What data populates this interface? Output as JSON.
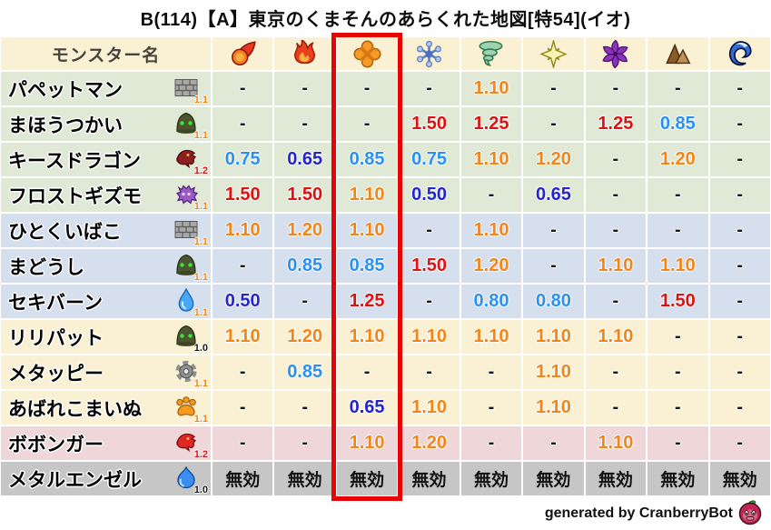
{
  "title": "B(114)【A】東京のくまそんのあらくれた地図[特54](イオ)",
  "footer": {
    "credit": "generated by CranberryBot",
    "icon": "cranberry-bot-icon"
  },
  "colors": {
    "strong_weakness": "#dd1111",
    "weakness": "#f08519",
    "resist": "#2b8ff0",
    "strong_resist": "#2424cc",
    "neutral": "#191919",
    "highlight_frame": "#e60505"
  },
  "chart_data": {
    "type": "table",
    "title": "B(114)【A】東京のくまそんのあらくれた地図[特54](イオ)",
    "name_column_header": "モンスター名",
    "immune_label": "無効",
    "element_columns": [
      {
        "icon": "fireball-icon",
        "highlighted": false
      },
      {
        "icon": "flame-icon",
        "highlighted": false
      },
      {
        "icon": "explosion-icon",
        "highlighted": true
      },
      {
        "icon": "snowflake-icon",
        "highlighted": false
      },
      {
        "icon": "tornado-icon",
        "highlighted": false
      },
      {
        "icon": "spark-icon",
        "highlighted": false
      },
      {
        "icon": "pinwheel-icon",
        "highlighted": false
      },
      {
        "icon": "mountain-icon",
        "highlighted": false
      },
      {
        "icon": "wave-icon",
        "highlighted": false
      }
    ],
    "rows": [
      {
        "name": "パペットマン",
        "icon": "brick-wall-icon",
        "rate": "1.1",
        "group": "green",
        "values": [
          "-",
          "-",
          "-",
          "-",
          "1.10",
          "-",
          "-",
          "-",
          "-"
        ]
      },
      {
        "name": "まほうつかい",
        "icon": "hood-icon",
        "rate": "1.1",
        "group": "green",
        "values": [
          "-",
          "-",
          "-",
          "1.50",
          "1.25",
          "-",
          "1.25",
          "0.85",
          "-"
        ]
      },
      {
        "name": "キースドラゴン",
        "icon": "dragon-dark-icon",
        "rate": "1.2",
        "group": "green",
        "values": [
          "0.75",
          "0.65",
          "0.85",
          "0.75",
          "1.10",
          "1.20",
          "-",
          "1.20",
          "-"
        ]
      },
      {
        "name": "フロストギズモ",
        "icon": "gizmo-icon",
        "rate": "1.1",
        "group": "green",
        "values": [
          "1.50",
          "1.50",
          "1.10",
          "0.50",
          "-",
          "0.65",
          "-",
          "-",
          "-"
        ]
      },
      {
        "name": "ひとくいばこ",
        "icon": "brick-wall-icon",
        "rate": "1.1",
        "group": "blue",
        "values": [
          "1.10",
          "1.20",
          "1.10",
          "-",
          "1.10",
          "-",
          "-",
          "-",
          "-"
        ]
      },
      {
        "name": "まどうし",
        "icon": "hood-icon",
        "rate": "1.1",
        "group": "blue",
        "values": [
          "-",
          "0.85",
          "0.85",
          "1.50",
          "1.20",
          "-",
          "1.10",
          "1.10",
          "-"
        ]
      },
      {
        "name": "セキバーン",
        "icon": "water-drop-icon",
        "rate": "1.1",
        "group": "blue",
        "values": [
          "0.50",
          "-",
          "1.25",
          "-",
          "0.80",
          "0.80",
          "-",
          "1.50",
          "-"
        ]
      },
      {
        "name": "リリパット",
        "icon": "hood-icon",
        "rate": "1.0",
        "group": "cream",
        "values": [
          "1.10",
          "1.20",
          "1.10",
          "1.10",
          "1.10",
          "1.10",
          "1.10",
          "-",
          "-"
        ]
      },
      {
        "name": "メタッピー",
        "icon": "gear-icon",
        "rate": "1.1",
        "group": "cream",
        "values": [
          "-",
          "0.85",
          "-",
          "-",
          "-",
          "1.10",
          "-",
          "-",
          "-"
        ]
      },
      {
        "name": "あばれこまいぬ",
        "icon": "paw-icon",
        "rate": "1.1",
        "group": "cream",
        "values": [
          "-",
          "-",
          "0.65",
          "1.10",
          "-",
          "1.10",
          "-",
          "-",
          "-"
        ]
      },
      {
        "name": "ボボンガー",
        "icon": "dragon-bright-icon",
        "rate": "1.2",
        "group": "pink",
        "values": [
          "-",
          "-",
          "1.10",
          "1.20",
          "-",
          "-",
          "1.10",
          "-",
          "-"
        ]
      },
      {
        "name": "メタルエンゼル",
        "icon": "slime-icon",
        "rate": "1.0",
        "group": "gray",
        "values": [
          "無効",
          "無効",
          "無効",
          "無効",
          "無効",
          "無効",
          "無効",
          "無効",
          "無効"
        ]
      }
    ]
  }
}
